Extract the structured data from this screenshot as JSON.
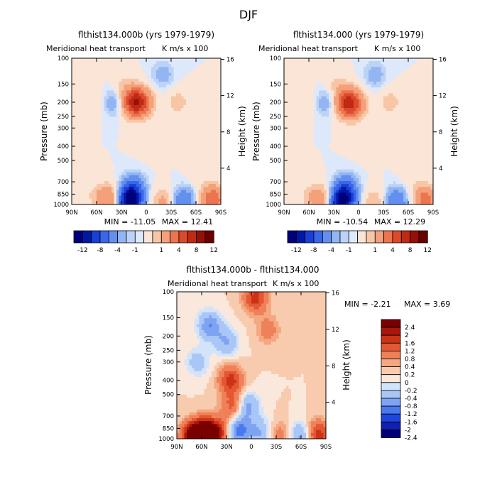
{
  "figure": {
    "title": "DJF"
  },
  "chart_data": [
    {
      "type": "heatmap",
      "title": "flthist134.000b (yrs 1979-1979)",
      "subtitle": "Meridional heat transport",
      "units": "K m/s x 100",
      "ylabel": "Pressure (mb)",
      "ylabel_right": "Height (km)",
      "x_ticks": [
        "90N",
        "60N",
        "30N",
        "0",
        "30S",
        "60S",
        "90S"
      ],
      "y_ticks": [
        "100",
        "150",
        "200",
        "250",
        "300",
        "400",
        "500",
        "700",
        "850",
        "1000"
      ],
      "y_ticks_right": [
        "16",
        "12",
        "8",
        "4"
      ],
      "min_label": "MIN = -11.05",
      "max_label": "MAX = 12.41",
      "levels": [
        -12,
        -10,
        -8,
        -6,
        -4,
        -2,
        -1,
        -0.5,
        0.5,
        1,
        2,
        4,
        6,
        8,
        10,
        12
      ],
      "colorbar_labels": [
        "-12",
        "-8",
        "-4",
        "-1",
        "1",
        "4",
        "8",
        "12"
      ],
      "features": [
        {
          "lat": 15,
          "p": 200,
          "value": 8
        },
        {
          "lat": 5,
          "p": 200,
          "value": 4
        },
        {
          "lat": 40,
          "p": 200,
          "value": -2
        },
        {
          "lat": 28,
          "p": 150,
          "value": 1
        },
        {
          "lat": -20,
          "p": 130,
          "value": -1.5
        },
        {
          "lat": -38,
          "p": 200,
          "value": 1.5
        },
        {
          "lat": 60,
          "p": 200,
          "value": 1
        },
        {
          "lat": 20,
          "p": 950,
          "value": -11
        },
        {
          "lat": 15,
          "p": 780,
          "value": -4
        },
        {
          "lat": 45,
          "p": 920,
          "value": 4
        },
        {
          "lat": 60,
          "p": 880,
          "value": 1
        },
        {
          "lat": -20,
          "p": 970,
          "value": 2.5
        },
        {
          "lat": -45,
          "p": 960,
          "value": -4
        },
        {
          "lat": -80,
          "p": 930,
          "value": 6
        },
        {
          "lat": -65,
          "p": 600,
          "value": 0.8
        },
        {
          "lat": -5,
          "p": 400,
          "value": 0.6
        }
      ]
    },
    {
      "type": "heatmap",
      "title": "flthist134.000 (yrs 1979-1979)",
      "subtitle": "Meridional heat transport",
      "units": "K m/s x 100",
      "ylabel": "Pressure (mb)",
      "ylabel_right": "Height (km)",
      "x_ticks": [
        "90N",
        "60N",
        "30N",
        "0",
        "30S",
        "60S",
        "90S"
      ],
      "y_ticks": [
        "100",
        "150",
        "200",
        "250",
        "300",
        "400",
        "500",
        "700",
        "850",
        "1000"
      ],
      "y_ticks_right": [
        "16",
        "12",
        "8",
        "4"
      ],
      "min_label": "MIN = -10.54",
      "max_label": "MAX = 12.29",
      "levels": [
        -12,
        -10,
        -8,
        -6,
        -4,
        -2,
        -1,
        -0.5,
        0.5,
        1,
        2,
        4,
        6,
        8,
        10,
        12
      ],
      "colorbar_labels": [
        "-12",
        "-8",
        "-4",
        "-1",
        "1",
        "4",
        "8",
        "12"
      ],
      "features": [
        {
          "lat": 15,
          "p": 200,
          "value": 7
        },
        {
          "lat": 5,
          "p": 210,
          "value": 4
        },
        {
          "lat": 40,
          "p": 200,
          "value": -2
        },
        {
          "lat": 28,
          "p": 150,
          "value": 1
        },
        {
          "lat": -20,
          "p": 130,
          "value": -1.5
        },
        {
          "lat": -38,
          "p": 200,
          "value": 1.5
        },
        {
          "lat": 60,
          "p": 200,
          "value": 1
        },
        {
          "lat": 20,
          "p": 950,
          "value": -10.5
        },
        {
          "lat": 15,
          "p": 780,
          "value": -4
        },
        {
          "lat": 45,
          "p": 920,
          "value": 3
        },
        {
          "lat": 60,
          "p": 880,
          "value": 1
        },
        {
          "lat": -20,
          "p": 970,
          "value": 2
        },
        {
          "lat": -45,
          "p": 960,
          "value": -4
        },
        {
          "lat": -80,
          "p": 930,
          "value": 5
        },
        {
          "lat": -65,
          "p": 600,
          "value": 0.8
        },
        {
          "lat": -5,
          "p": 400,
          "value": 0.6
        }
      ]
    },
    {
      "type": "heatmap",
      "title": "flthist134.000b - flthist134.000",
      "subtitle": "Meridional heat transport",
      "units": "K m/s x 100",
      "ylabel": "Pressure (mb)",
      "ylabel_right": "Height (km)",
      "x_ticks": [
        "90N",
        "60N",
        "30N",
        "0",
        "30S",
        "60S",
        "90S"
      ],
      "y_ticks": [
        "100",
        "150",
        "200",
        "250",
        "300",
        "400",
        "500",
        "700",
        "850",
        "1000"
      ],
      "y_ticks_right": [
        "16",
        "12",
        "8",
        "4"
      ],
      "min_label": "MIN =   -2.21",
      "max_label": "MAX =    3.69",
      "levels": [
        -2.4,
        -2,
        -1.6,
        -1.2,
        -0.8,
        -0.4,
        -0.2,
        0,
        0.2,
        0.4,
        0.8,
        1.2,
        1.6,
        2,
        2.4
      ],
      "colorbar_labels": [
        "2.4",
        "2",
        "1.6",
        "1.2",
        "0.8",
        "0.4",
        "0.2",
        "0",
        "-0.2",
        "-0.4",
        "-0.8",
        "-1.2",
        "-1.6",
        "-2",
        "-2.4"
      ],
      "features": [
        {
          "lat": 70,
          "p": 960,
          "value": 2.5
        },
        {
          "lat": 55,
          "p": 940,
          "value": 3.5
        },
        {
          "lat": 40,
          "p": 900,
          "value": 1.2
        },
        {
          "lat": 25,
          "p": 400,
          "value": 1.4
        },
        {
          "lat": 22,
          "p": 600,
          "value": 1
        },
        {
          "lat": 50,
          "p": 170,
          "value": -1.2
        },
        {
          "lat": 30,
          "p": 220,
          "value": -0.8
        },
        {
          "lat": 65,
          "p": 300,
          "value": -0.6
        },
        {
          "lat": 15,
          "p": 880,
          "value": -1.4
        },
        {
          "lat": 5,
          "p": 600,
          "value": -1
        },
        {
          "lat": -10,
          "p": 900,
          "value": -0.8
        },
        {
          "lat": -35,
          "p": 950,
          "value": 0.6
        },
        {
          "lat": -60,
          "p": 960,
          "value": -1
        },
        {
          "lat": -80,
          "p": 940,
          "value": 1.5
        },
        {
          "lat": -20,
          "p": 180,
          "value": 0.6
        },
        {
          "lat": -5,
          "p": 110,
          "value": 1.4
        }
      ]
    }
  ]
}
